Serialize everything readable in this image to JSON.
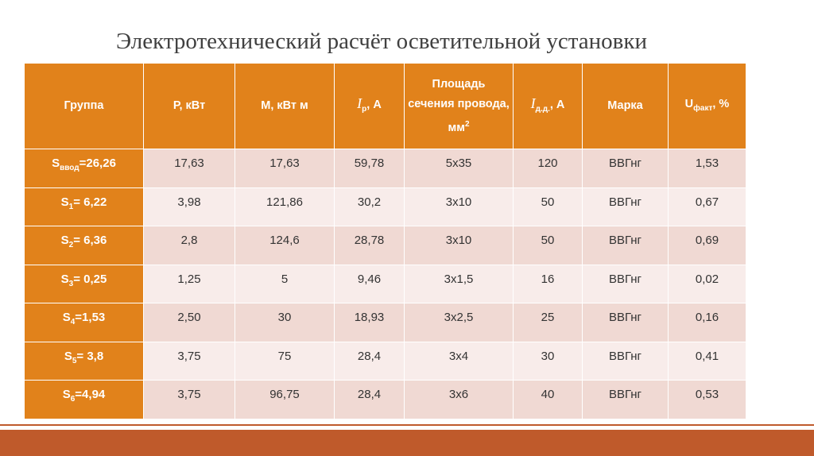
{
  "title": "Электротехнический расчёт осветительной установки",
  "table": {
    "header": [
      "Группа",
      "Р, кВт",
      "М, кВт м",
      {
        "main": "I",
        "sub": "р",
        "rest": ", А"
      },
      {
        "main": "Площадь сечения провода, мм",
        "sup": "2"
      },
      {
        "main": "I",
        "sub": "д.д.",
        "rest": ", А"
      },
      "Марка",
      {
        "main": "U",
        "sub": "факт",
        "rest": ", %"
      }
    ],
    "rows": [
      [
        {
          "main": "S",
          "sub": "ввод",
          "rest": "=26,26"
        },
        "17,63",
        "17,63",
        "59,78",
        "5х35",
        "120",
        "ВВГнг",
        "1,53"
      ],
      [
        {
          "main": "S",
          "sub": "1",
          "rest": "= 6,22"
        },
        "3,98",
        "121,86",
        "30,2",
        "3х10",
        "50",
        "ВВГнг",
        "0,67"
      ],
      [
        {
          "main": "S",
          "sub": "2",
          "rest": "= 6,36"
        },
        "2,8",
        "124,6",
        "28,78",
        "3х10",
        "50",
        "ВВГнг",
        "0,69"
      ],
      [
        {
          "main": "S",
          "sub": "3",
          "rest": "= 0,25"
        },
        "1,25",
        "5",
        "9,46",
        "3х1,5",
        "16",
        "ВВГнг",
        "0,02"
      ],
      [
        {
          "main": "S",
          "sub": "4",
          "rest": "=1,53"
        },
        "2,50",
        "30",
        "18,93",
        "3х2,5",
        "25",
        "ВВГнг",
        "0,16"
      ],
      [
        {
          "main": "S",
          "sub": "5",
          "rest": "= 3,8"
        },
        "3,75",
        "75",
        "28,4",
        "3х4",
        "30",
        "ВВГнг",
        "0,41"
      ],
      [
        {
          "main": "S",
          "sub": "6",
          "rest": "=4,94"
        },
        "3,75",
        "96,75",
        "28,4",
        "3х6",
        "40",
        "ВВГнг",
        "0,53"
      ]
    ]
  }
}
